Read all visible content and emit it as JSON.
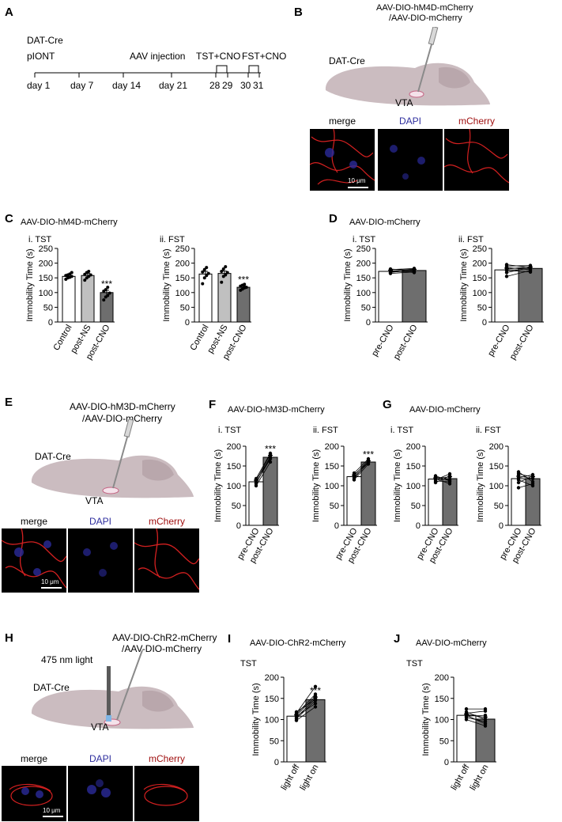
{
  "panelA": {
    "letter": "A",
    "line1": "DAT-Cre",
    "line2": "pIONT",
    "events": [
      "AAV injection",
      "TST+CNO",
      "FST+CNO"
    ],
    "days": [
      "day 1",
      "day 7",
      "day 14",
      "day 21",
      "28",
      "29",
      "30",
      "31"
    ]
  },
  "panelB": {
    "letter": "B",
    "virus": [
      "AAV-DIO-hM4D-mCherry",
      "/AAV-DIO-mCherry"
    ],
    "mouse": "DAT-Cre",
    "region": "VTA",
    "channels": [
      "merge",
      "DAPI",
      "mCherry"
    ],
    "scale": "10 μm"
  },
  "panelE": {
    "letter": "E",
    "virus": [
      "AAV-DIO-hM3D-mCherry",
      "/AAV-DIO-mCherry"
    ],
    "mouse": "DAT-Cre",
    "region": "VTA",
    "channels": [
      "merge",
      "DAPI",
      "mCherry"
    ],
    "scale": "10 μm"
  },
  "panelH": {
    "letter": "H",
    "virus": [
      "AAV-DIO-ChR2-mCherry",
      "/AAV-DIO-mCherry"
    ],
    "light": "475 nm light",
    "mouse": "DAT-Cre",
    "region": "VTA",
    "channels": [
      "merge",
      "DAPI",
      "mCherry"
    ],
    "scale": "10 μm"
  },
  "colors": {
    "white_bar": "#ffffff",
    "light_gray_bar": "#c0c0c0",
    "dark_gray_bar": "#6e6e6e",
    "brain": "#cbbcc0",
    "channel_red": "#d42020",
    "channel_blue": "#2a2a9a",
    "label_blue": "#2e2e9e",
    "label_red": "#a01010"
  },
  "chart_data": [
    {
      "id": "C-i",
      "letter": "C",
      "title": "AAV-DIO-hM4D-mCherry",
      "subtitle": "i. TST",
      "type": "bar",
      "ylabel": "Immobility Time (s)",
      "ylim": [
        0,
        250
      ],
      "yticks": [
        0,
        50,
        100,
        150,
        200,
        250
      ],
      "categories": [
        "Control",
        "post-NS",
        "post-CNO"
      ],
      "values": [
        155,
        158,
        100
      ],
      "errors": [
        6,
        7,
        8
      ],
      "fills": [
        "white",
        "light",
        "dark"
      ],
      "sig": [
        "",
        "",
        "***"
      ],
      "points": [
        [
          145,
          150,
          152,
          155,
          158,
          160,
          163,
          168
        ],
        [
          142,
          150,
          155,
          160,
          162,
          168,
          172
        ],
        [
          75,
          85,
          90,
          98,
          105,
          110,
          118
        ]
      ]
    },
    {
      "id": "C-ii",
      "title": "",
      "subtitle": "ii. FST",
      "type": "bar",
      "ylabel": "Immobility Time (s)",
      "ylim": [
        0,
        250
      ],
      "yticks": [
        0,
        50,
        100,
        150,
        200,
        250
      ],
      "categories": [
        "Control",
        "post-NS",
        "post-CNO"
      ],
      "values": [
        163,
        165,
        118
      ],
      "errors": [
        9,
        8,
        4
      ],
      "fills": [
        "white",
        "light",
        "dark"
      ],
      "sig": [
        "",
        "",
        "***"
      ],
      "points": [
        [
          130,
          150,
          158,
          165,
          170,
          178,
          185
        ],
        [
          135,
          155,
          160,
          168,
          172,
          180,
          188
        ],
        [
          108,
          112,
          116,
          118,
          122,
          125,
          128
        ]
      ]
    },
    {
      "id": "D-i",
      "letter": "D",
      "title": "AAV-DIO-mCherry",
      "subtitle": "i. TST",
      "type": "paired",
      "ylabel": "Immobility Time (s)",
      "ylim": [
        0,
        250
      ],
      "yticks": [
        0,
        50,
        100,
        150,
        200,
        250
      ],
      "categories": [
        "pre-CNO",
        "post-CNO"
      ],
      "values": [
        172,
        175
      ],
      "errors": [
        4,
        4
      ],
      "fills": [
        "white",
        "dark"
      ],
      "sig": [
        "",
        ""
      ],
      "pairs": [
        [
          165,
          170
        ],
        [
          168,
          178
        ],
        [
          170,
          172
        ],
        [
          173,
          180
        ],
        [
          175,
          168
        ],
        [
          178,
          182
        ],
        [
          180,
          175
        ]
      ]
    },
    {
      "id": "D-ii",
      "title": "",
      "subtitle": "ii. FST",
      "type": "paired",
      "ylabel": "Immobility Time (s)",
      "ylim": [
        0,
        250
      ],
      "yticks": [
        0,
        50,
        100,
        150,
        200,
        250
      ],
      "categories": [
        "pre-CNO",
        "post-CNO"
      ],
      "values": [
        177,
        182
      ],
      "errors": [
        6,
        5
      ],
      "fills": [
        "white",
        "dark"
      ],
      "sig": [
        "",
        ""
      ],
      "pairs": [
        [
          155,
          175
        ],
        [
          168,
          185
        ],
        [
          175,
          170
        ],
        [
          180,
          188
        ],
        [
          185,
          178
        ],
        [
          190,
          192
        ],
        [
          195,
          185
        ]
      ]
    },
    {
      "id": "F-i",
      "letter": "F",
      "title": "AAV-DIO-hM3D-mCherry",
      "subtitle": "i. TST",
      "type": "paired",
      "ylabel": "Immobility Time (s)",
      "ylim": [
        0,
        200
      ],
      "yticks": [
        0,
        50,
        100,
        150,
        200
      ],
      "categories": [
        "pre-CNO",
        "post-CNO"
      ],
      "values": [
        110,
        172
      ],
      "errors": [
        4,
        5
      ],
      "fills": [
        "white",
        "dark"
      ],
      "sig": [
        "",
        "***"
      ],
      "pairs": [
        [
          100,
          160
        ],
        [
          105,
          175
        ],
        [
          108,
          168
        ],
        [
          112,
          180
        ],
        [
          115,
          170
        ],
        [
          118,
          182
        ]
      ]
    },
    {
      "id": "F-ii",
      "title": "",
      "subtitle": "ii. FST",
      "type": "paired",
      "ylabel": "Immobility Time (s)",
      "ylim": [
        0,
        200
      ],
      "yticks": [
        0,
        50,
        100,
        150,
        200
      ],
      "categories": [
        "pre-CNO",
        "post-CNO"
      ],
      "values": [
        123,
        160
      ],
      "errors": [
        4,
        3
      ],
      "fills": [
        "white",
        "dark"
      ],
      "sig": [
        "",
        "***"
      ],
      "pairs": [
        [
          115,
          155
        ],
        [
          118,
          162
        ],
        [
          122,
          158
        ],
        [
          125,
          165
        ],
        [
          128,
          160
        ],
        [
          132,
          168
        ]
      ]
    },
    {
      "id": "G-i",
      "letter": "G",
      "title": "AAV-DIO-mCherry",
      "subtitle": "i. TST",
      "type": "paired",
      "ylabel": "Immobility Time (s)",
      "ylim": [
        0,
        200
      ],
      "yticks": [
        0,
        50,
        100,
        150,
        200
      ],
      "categories": [
        "pre-CNO",
        "post-CNO"
      ],
      "values": [
        117,
        118
      ],
      "errors": [
        3,
        5
      ],
      "fills": [
        "white",
        "dark"
      ],
      "sig": [
        "",
        ""
      ],
      "pairs": [
        [
          108,
          125
        ],
        [
          112,
          110
        ],
        [
          115,
          130
        ],
        [
          118,
          105
        ],
        [
          120,
          122
        ],
        [
          122,
          115
        ],
        [
          125,
          112
        ]
      ]
    },
    {
      "id": "G-ii",
      "title": "",
      "subtitle": "ii. FST",
      "type": "paired",
      "ylabel": "Immobility Time (s)",
      "ylim": [
        0,
        200
      ],
      "yticks": [
        0,
        50,
        100,
        150,
        200
      ],
      "categories": [
        "pre-CNO",
        "post-CNO"
      ],
      "values": [
        118,
        118
      ],
      "errors": [
        6,
        5
      ],
      "fills": [
        "white",
        "dark"
      ],
      "sig": [
        "",
        ""
      ],
      "pairs": [
        [
          95,
          105
        ],
        [
          108,
          125
        ],
        [
          115,
          100
        ],
        [
          120,
          128
        ],
        [
          125,
          118
        ],
        [
          130,
          122
        ],
        [
          135,
          110
        ]
      ]
    },
    {
      "id": "I",
      "letter": "I",
      "title": "AAV-DIO-ChR2-mCherry",
      "subtitle": "TST",
      "type": "paired",
      "ylabel": "Immobility Time (s)",
      "ylim": [
        0,
        200
      ],
      "yticks": [
        0,
        50,
        100,
        150,
        200
      ],
      "categories": [
        "light off",
        "light on"
      ],
      "values": [
        108,
        147
      ],
      "errors": [
        3,
        6
      ],
      "fills": [
        "white",
        "dark"
      ],
      "sig": [
        "",
        "***"
      ],
      "pairs": [
        [
          98,
          130
        ],
        [
          102,
          145
        ],
        [
          105,
          150
        ],
        [
          108,
          138
        ],
        [
          110,
          155
        ],
        [
          113,
          160
        ],
        [
          115,
          178
        ],
        [
          118,
          148
        ]
      ]
    },
    {
      "id": "J",
      "letter": "J",
      "title": "AAV-DIO-mCherry",
      "subtitle": "TST",
      "type": "paired",
      "ylabel": "Immobility Time (s)",
      "ylim": [
        0,
        200
      ],
      "yticks": [
        0,
        50,
        100,
        150,
        200
      ],
      "categories": [
        "light off",
        "light on"
      ],
      "values": [
        110,
        101
      ],
      "errors": [
        3,
        5
      ],
      "fills": [
        "white",
        "dark"
      ],
      "sig": [
        "",
        ""
      ],
      "pairs": [
        [
          100,
          85
        ],
        [
          105,
          95
        ],
        [
          108,
          110
        ],
        [
          110,
          90
        ],
        [
          112,
          105
        ],
        [
          115,
          120
        ],
        [
          118,
          100
        ],
        [
          125,
          125
        ]
      ]
    }
  ]
}
